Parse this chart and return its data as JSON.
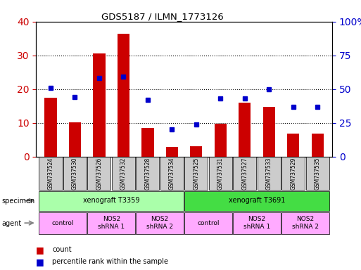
{
  "title": "GDS5187 / ILMN_1773126",
  "samples": [
    "GSM737524",
    "GSM737530",
    "GSM737526",
    "GSM737532",
    "GSM737528",
    "GSM737534",
    "GSM737525",
    "GSM737531",
    "GSM737527",
    "GSM737533",
    "GSM737529",
    "GSM737535"
  ],
  "counts": [
    17.5,
    10.2,
    30.5,
    36.5,
    8.5,
    2.8,
    3.0,
    9.7,
    16.0,
    14.7,
    6.8,
    6.8
  ],
  "percentile_ranks": [
    51,
    44,
    58,
    59,
    42,
    20,
    24,
    43,
    43,
    50,
    37,
    37
  ],
  "ylim_left": [
    0,
    40
  ],
  "ylim_right": [
    0,
    100
  ],
  "yticks_left": [
    0,
    10,
    20,
    30,
    40
  ],
  "yticks_right": [
    0,
    25,
    50,
    75,
    100
  ],
  "bar_color": "#cc0000",
  "marker_color": "#0000cc",
  "specimen_groups": [
    {
      "label": "xenograft T3359",
      "start": 0,
      "end": 5,
      "color": "#aaffaa"
    },
    {
      "label": "xenograft T3691",
      "start": 6,
      "end": 11,
      "color": "#44dd44"
    }
  ],
  "agent_groups": [
    {
      "label": "control",
      "start": 0,
      "end": 1,
      "color": "#ffaaff"
    },
    {
      "label": "NOS2\nshRNA 1",
      "start": 2,
      "end": 3,
      "color": "#ffaaff"
    },
    {
      "label": "NOS2\nshRNA 2",
      "start": 4,
      "end": 5,
      "color": "#ffaaff"
    },
    {
      "label": "control",
      "start": 6,
      "end": 7,
      "color": "#ffaaff"
    },
    {
      "label": "NOS2\nshRNA 1",
      "start": 8,
      "end": 9,
      "color": "#ffaaff"
    },
    {
      "label": "NOS2\nshRNA 2",
      "start": 10,
      "end": 11,
      "color": "#ffaaff"
    }
  ],
  "tick_bg_color": "#cccccc",
  "legend_count_color": "#cc0000",
  "legend_marker_color": "#0000cc"
}
